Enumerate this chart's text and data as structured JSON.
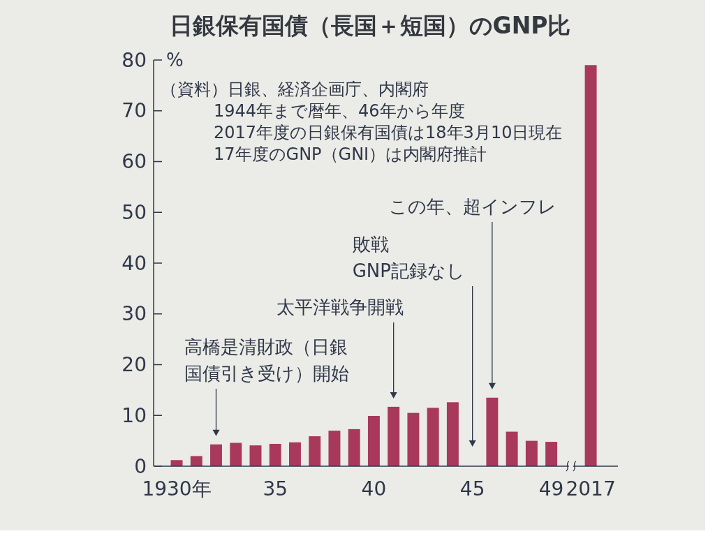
{
  "chart_data": {
    "type": "bar",
    "title": "日銀保有国債（長国＋短国）のGNP比",
    "ylabel": "%",
    "categories": [
      "1930年",
      null,
      null,
      null,
      null,
      "35",
      null,
      null,
      null,
      null,
      "40",
      null,
      null,
      null,
      null,
      "45",
      null,
      null,
      null,
      "49",
      null,
      "2017"
    ],
    "values": [
      1.2,
      2.0,
      4.3,
      4.6,
      4.1,
      4.4,
      4.7,
      5.9,
      7.0,
      7.3,
      9.9,
      11.7,
      10.5,
      11.5,
      12.6,
      null,
      13.5,
      6.8,
      5.0,
      4.8,
      null,
      79
    ],
    "color": "#a8395c",
    "ylim": [
      0,
      80
    ],
    "yticks": [
      0,
      10,
      20,
      30,
      40,
      50,
      60,
      70,
      80
    ],
    "annotations": [
      "（資料）日銀、経済企画庁、内閣府",
      "1944年まで暦年、46年から年度",
      "2017年度の日銀保有国債は18年3月10日現在",
      "17年度のGNP（GNI）は内閣府推計",
      "高橋是清財政（日銀国債引き受け）開始",
      "太平洋戦争開戦",
      "敗戦GNP記録なし",
      "この年、超インフレ"
    ]
  }
}
